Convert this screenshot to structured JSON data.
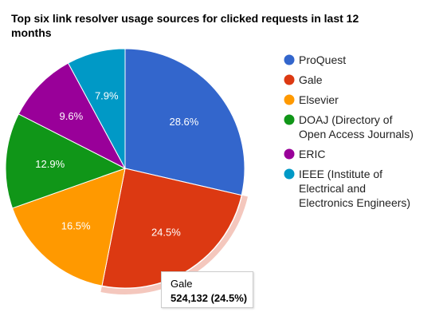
{
  "chart_data": {
    "type": "pie",
    "title": "Top six link resolver usage sources for clicked requests in last 12 months",
    "legend_position": "right",
    "slices": [
      {
        "name": "ProQuest",
        "legend_label": [
          "ProQuest"
        ],
        "percent": 28.6,
        "label": "28.6%",
        "color": "#3366cc"
      },
      {
        "name": "Gale",
        "legend_label": [
          "Gale"
        ],
        "percent": 24.5,
        "label": "24.5%",
        "color": "#dc3912"
      },
      {
        "name": "Elsevier",
        "legend_label": [
          "Elsevier"
        ],
        "percent": 16.5,
        "label": "16.5%",
        "color": "#ff9900"
      },
      {
        "name": "DOAJ (Directory of Open Access Journals)",
        "legend_label": [
          "DOAJ (Directory of",
          "Open Access Journals)"
        ],
        "percent": 12.9,
        "label": "12.9%",
        "color": "#109618"
      },
      {
        "name": "ERIC",
        "legend_label": [
          "ERIC"
        ],
        "percent": 9.6,
        "label": "9.6%",
        "color": "#990099"
      },
      {
        "name": "IEEE (Institute of Electrical and Electronics Engineers)",
        "legend_label": [
          "IEEE (Institute of",
          "Electrical and",
          "Electronics Engineers)"
        ],
        "percent": 7.9,
        "label": "7.9%",
        "color": "#0099c6"
      }
    ],
    "highlighted_slice": 1,
    "highlight_color": "#f4c7bd"
  },
  "tooltip": {
    "name": "Gale",
    "value": "524,132 (24.5%)"
  }
}
